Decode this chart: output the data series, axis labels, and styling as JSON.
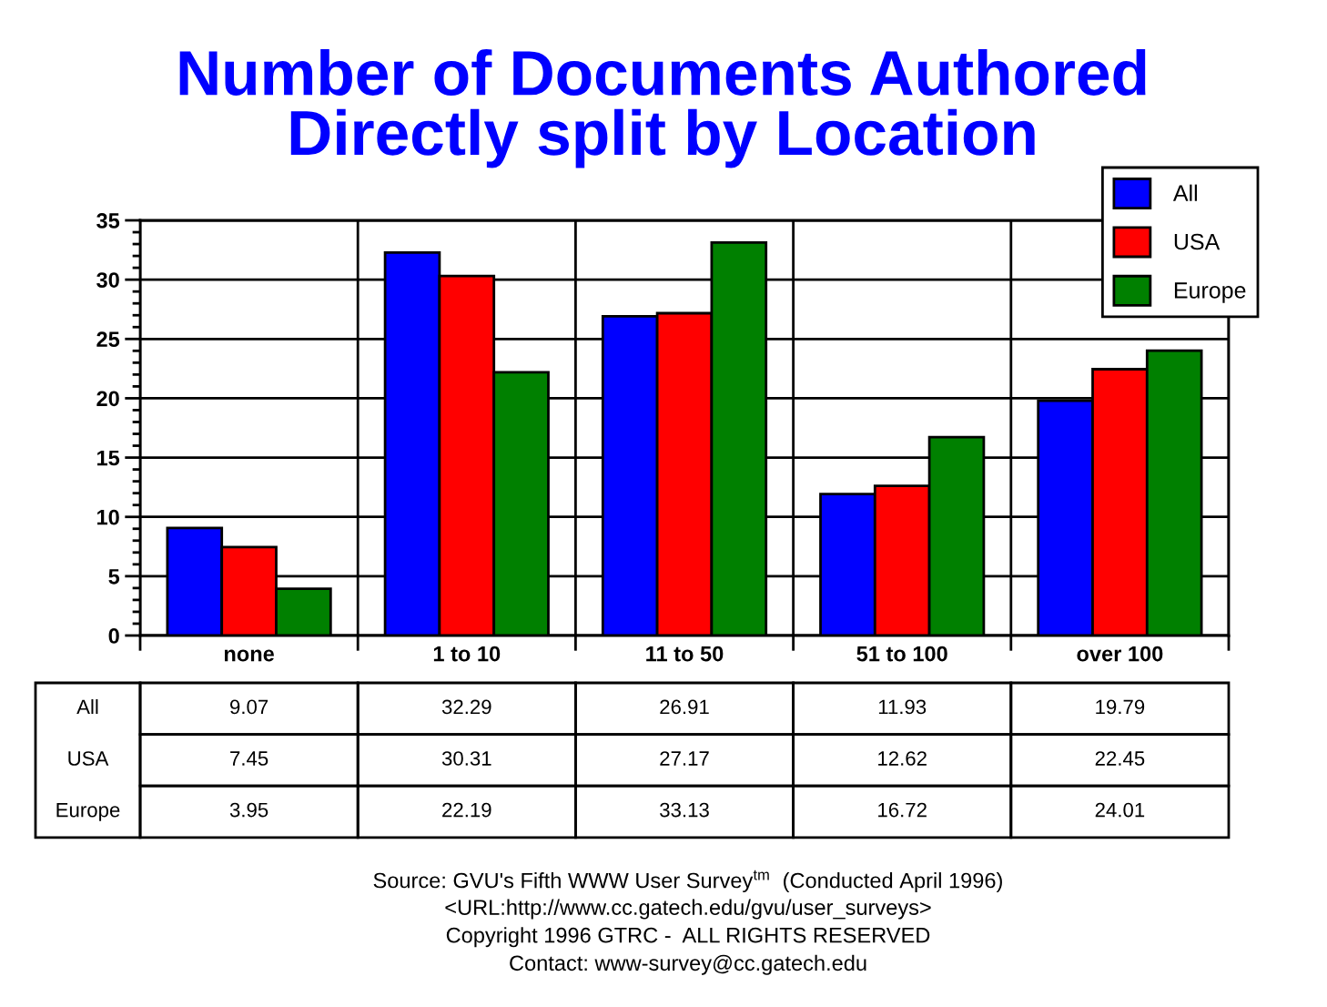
{
  "chart_data": {
    "type": "bar",
    "title": "Number of Documents Authored\nDirectly split by Location",
    "categories": [
      "none",
      "1 to 10",
      "11 to 50",
      "51 to 100",
      "over 100"
    ],
    "series": [
      {
        "name": "All",
        "color": "#0000ff",
        "values": [
          9.07,
          32.29,
          26.91,
          11.93,
          19.79
        ]
      },
      {
        "name": "USA",
        "color": "#ff0000",
        "values": [
          7.45,
          30.31,
          27.17,
          12.62,
          22.45
        ]
      },
      {
        "name": "Europe",
        "color": "#008000",
        "values": [
          3.95,
          22.19,
          33.13,
          16.72,
          24.01
        ]
      }
    ],
    "ylim": [
      0,
      35
    ],
    "yticks": [
      0,
      5,
      10,
      15,
      20,
      25,
      30,
      35
    ],
    "grid": true,
    "legend": "top right",
    "data_labels": true,
    "annotations": [
      "Source: GVU's Fifth WWW User Survey$^{tm}$  (Conducted April 1996)",
      "<URL:http://www.cc.gatech.edu/gvu/user_surveys>",
      "Copyright 1996 GTRC -  ALL RIGHTS RESERVED",
      "Contact: www-survey@cc.gatech.edu"
    ]
  }
}
